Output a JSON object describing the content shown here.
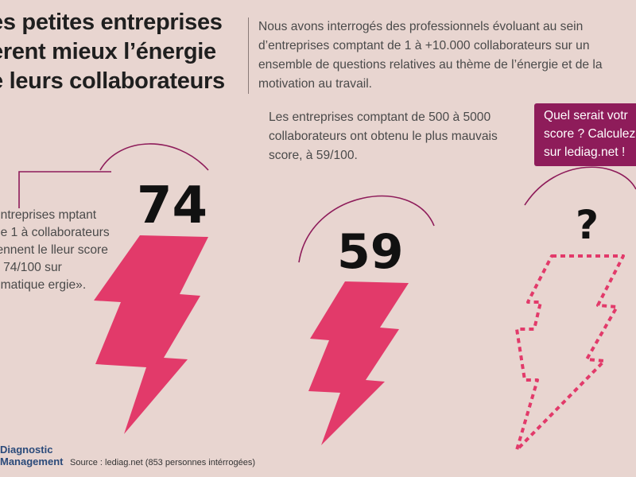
{
  "title": {
    "line1": "es petites entreprises",
    "line2": "èrent mieux l’énergie",
    "line3": "e leurs collaborateurs"
  },
  "intro": "Nous avons interrogés des professionnels évoluant au sein d’entreprises comptant de 1 à +10.000 collaborateurs sur un ensemble de questions relatives au thème de l’énergie et de la motivation au travail.",
  "scores": {
    "best": "74",
    "worst": "59",
    "yours": "?"
  },
  "notes": {
    "best": "entreprises mptant de 1 à collaborateurs iennent le lleur score c 74/100 sur ématique ergie».",
    "worst": "Les entreprises comptant de 500 à 5000 collaborateurs ont obtenu le plus mauvais score, à 59/100."
  },
  "callout": "Quel serait votr score ? Calculez sur lediag.net !",
  "footer": {
    "logo_line1": "Diagnostic",
    "logo_line2": "Management",
    "source": "Source : lediag.net (853 personnes intérrogées)"
  },
  "colors": {
    "background": "#e8d5d0",
    "bolt": "#e23a6a",
    "callout": "#8e1c5a",
    "arc": "#8e1c5a"
  }
}
